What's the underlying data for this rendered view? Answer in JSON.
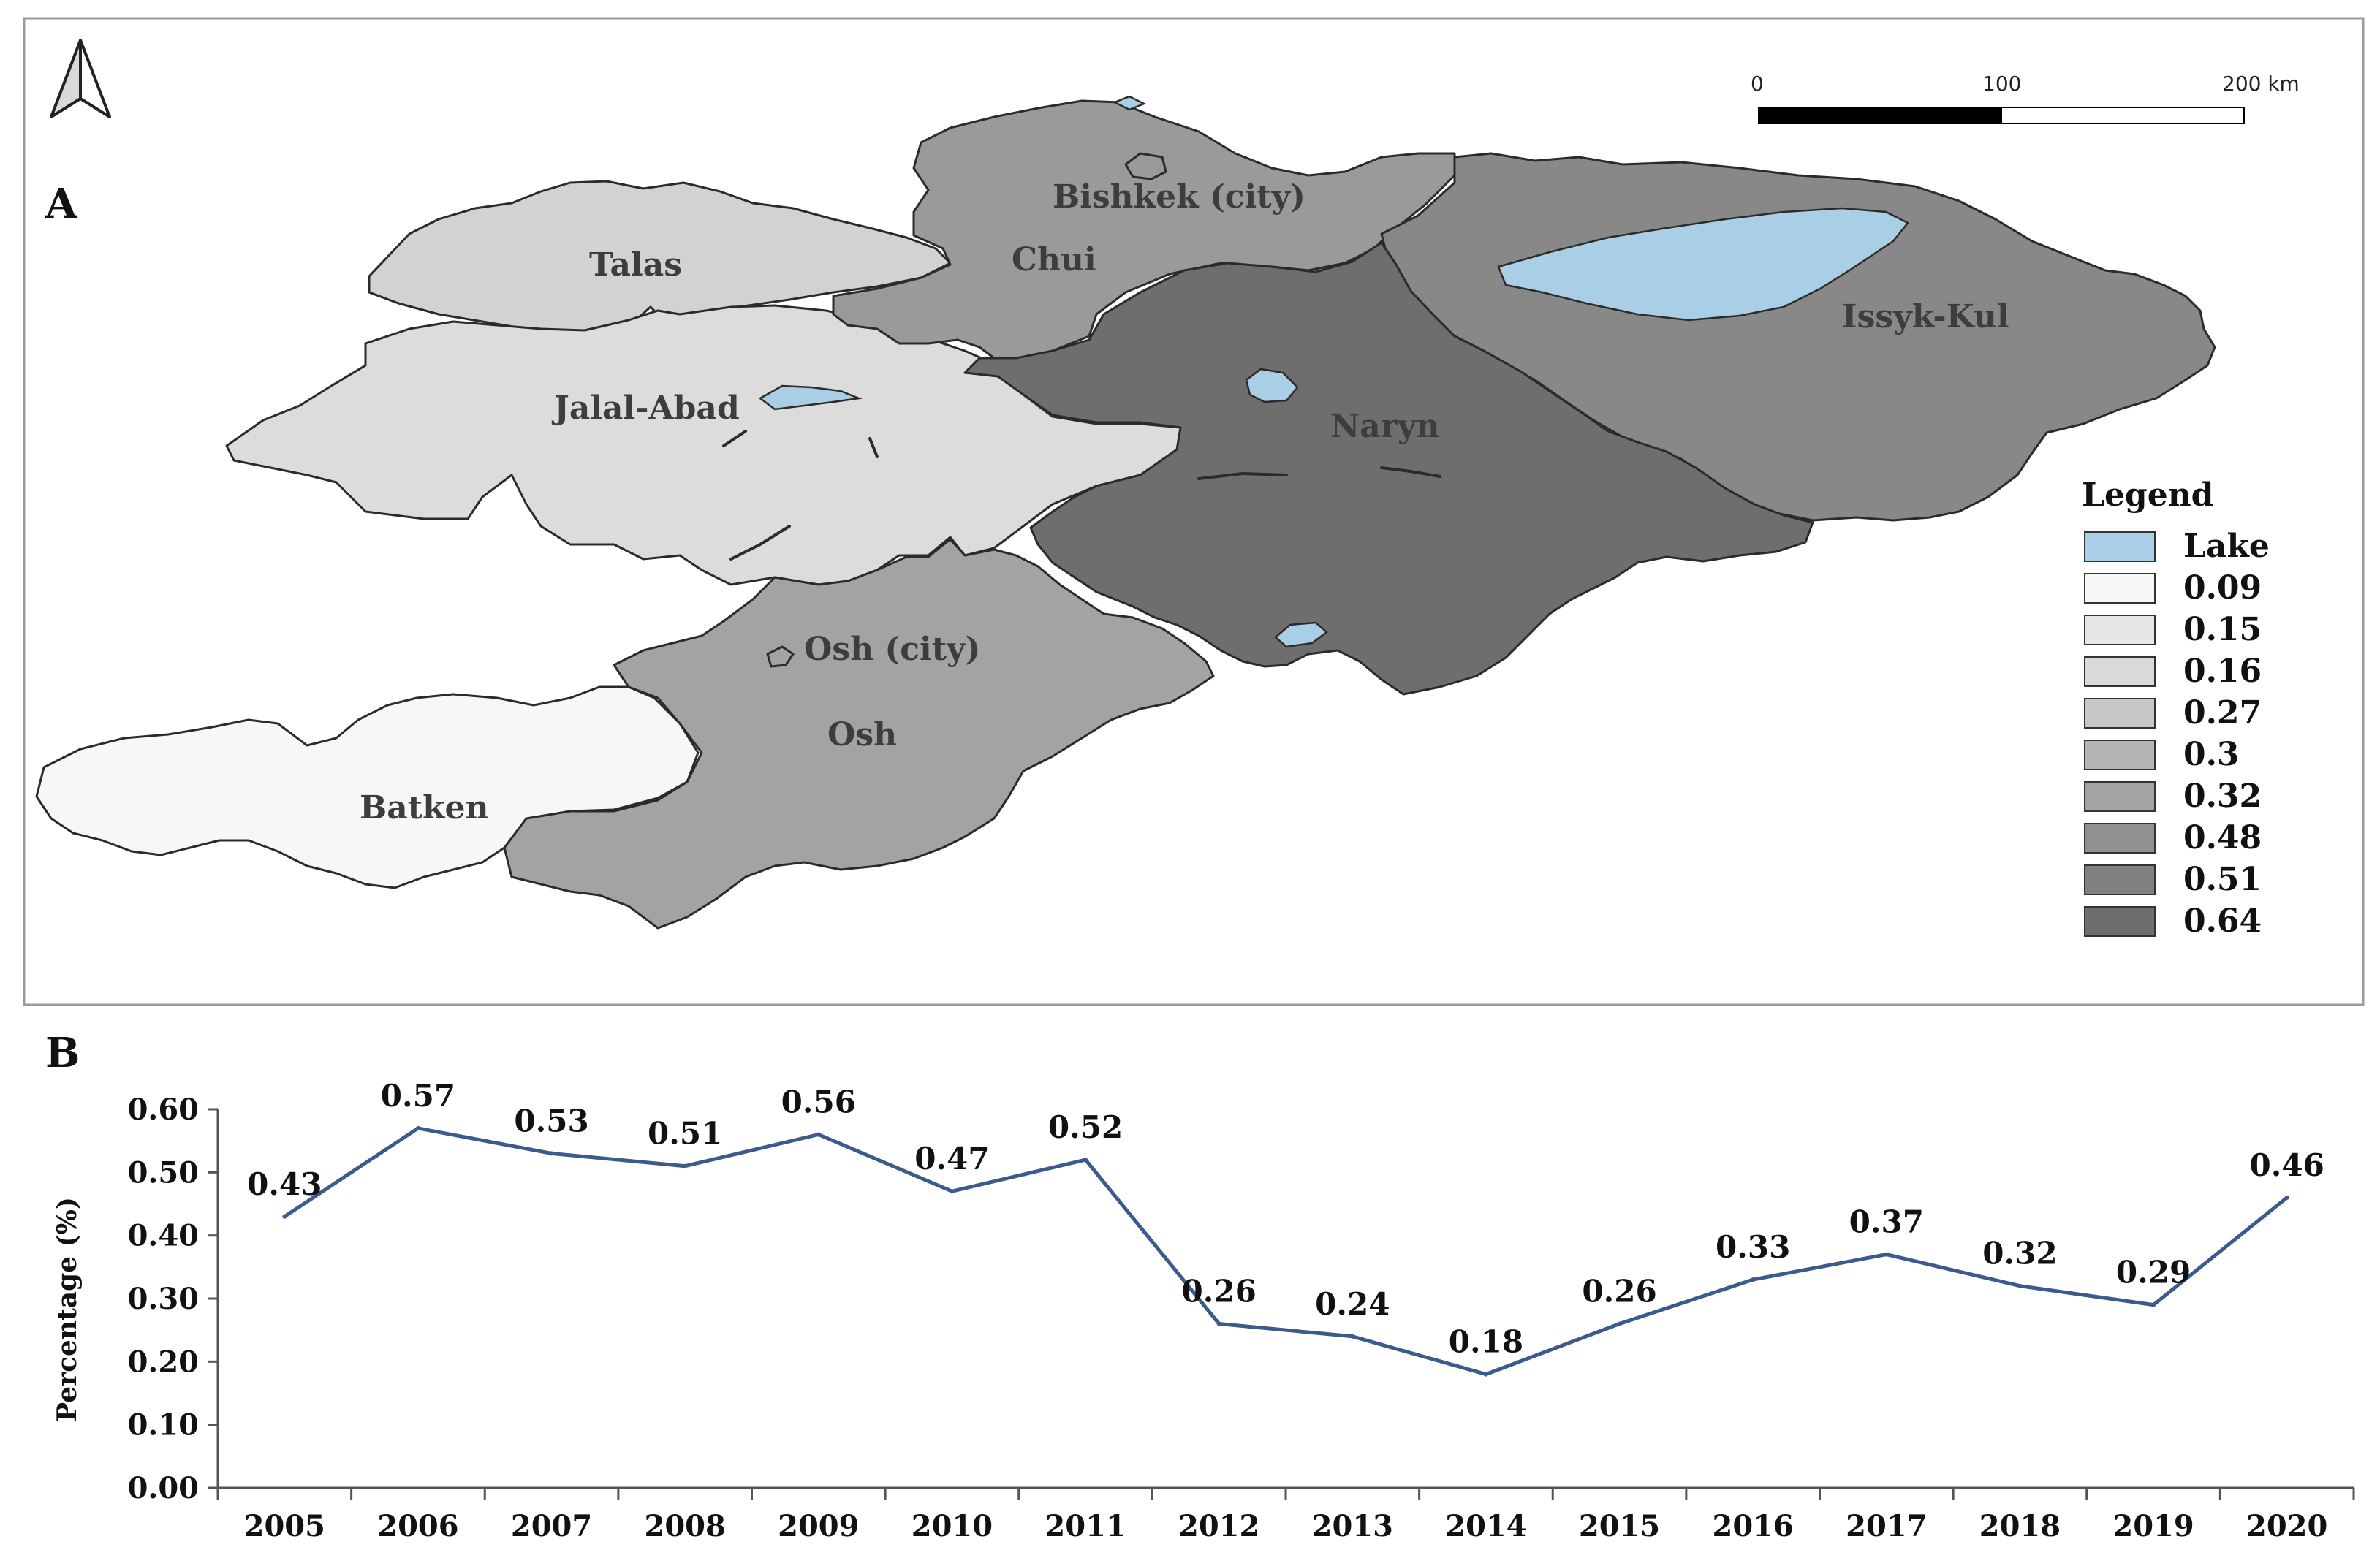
{
  "map": {
    "panel_label": "A",
    "regions": [
      {
        "name": "Talas",
        "value": 0.16,
        "color": "#d2d2d2"
      },
      {
        "name": "Chui",
        "value": 0.48,
        "color": "#9a9a9a"
      },
      {
        "name": "Bishkek (city)",
        "value": 0.48,
        "color": "#9a9a9a"
      },
      {
        "name": "Issyk-Kul",
        "value": 0.51,
        "color": "#888888"
      },
      {
        "name": "Naryn",
        "value": 0.64,
        "color": "#6e6e6e"
      },
      {
        "name": "Jalal-Abad",
        "value": 0.15,
        "color": "#dcdcdc"
      },
      {
        "name": "Osh",
        "value": 0.32,
        "color": "#a3a3a3"
      },
      {
        "name": "Osh (city)",
        "value": 0.32,
        "color": "#a3a3a3"
      },
      {
        "name": "Batken",
        "value": 0.09,
        "color": "#f7f7f7"
      }
    ],
    "legend": {
      "title": "Legend",
      "items": [
        {
          "label": "Lake",
          "color": "#a9cfe6"
        },
        {
          "label": "0.09",
          "color": "#f7f7f7"
        },
        {
          "label": "0.15",
          "color": "#e6e6e6"
        },
        {
          "label": "0.16",
          "color": "#d9d9d9"
        },
        {
          "label": "0.27",
          "color": "#c8c8c8"
        },
        {
          "label": "0.3",
          "color": "#b5b5b5"
        },
        {
          "label": "0.32",
          "color": "#a3a3a3"
        },
        {
          "label": "0.48",
          "color": "#919191"
        },
        {
          "label": "0.51",
          "color": "#808080"
        },
        {
          "label": "0.64",
          "color": "#6e6e6e"
        }
      ]
    },
    "scale_bar": {
      "labels": [
        "0",
        "100",
        "200 km"
      ]
    },
    "north_arrow": "north-arrow-icon"
  },
  "chart_data": {
    "panel_label": "B",
    "type": "line",
    "x": [
      "2005",
      "2006",
      "2007",
      "2008",
      "2009",
      "2010",
      "2011",
      "2012",
      "2013",
      "2014",
      "2015",
      "2016",
      "2017",
      "2018",
      "2019",
      "2020"
    ],
    "series": [
      {
        "values": [
          0.43,
          0.57,
          0.53,
          0.51,
          0.56,
          0.47,
          0.52,
          0.26,
          0.24,
          0.18,
          0.26,
          0.33,
          0.37,
          0.32,
          0.29,
          0.46
        ],
        "color": "#3d5a8c"
      }
    ],
    "data_labels": [
      "0.43",
      "0.57",
      "0.53",
      "0.51",
      "0.56",
      "0.47",
      "0.52",
      "0.26",
      "0.24",
      "0.18",
      "0.26",
      "0.33",
      "0.37",
      "0.32",
      "0.29",
      "0.46"
    ],
    "ylabel": "Percentage (%)",
    "ylim": [
      0,
      0.6
    ],
    "yticks": [
      "0.00",
      "0.10",
      "0.20",
      "0.30",
      "0.40",
      "0.50",
      "0.60"
    ],
    "grid": false
  }
}
